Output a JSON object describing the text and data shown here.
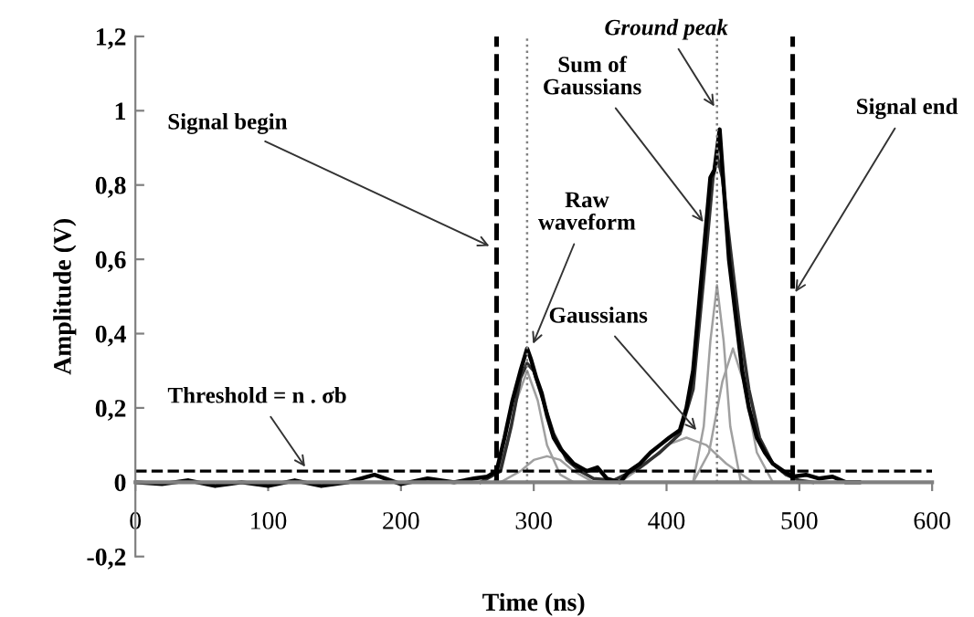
{
  "chart_data": {
    "type": "line",
    "xlabel": "Time (ns)",
    "ylabel": "Amplitude (V)",
    "xlim": [
      0,
      600
    ],
    "xticks": [
      0,
      100,
      200,
      300,
      400,
      500,
      600
    ],
    "ylim": [
      -0.2,
      1.2
    ],
    "yticks": [
      {
        "value": -0.2,
        "label": "-0,2"
      },
      {
        "value": 0,
        "label": "0"
      },
      {
        "value": 0.2,
        "label": "0,2"
      },
      {
        "value": 0.4,
        "label": "0,4"
      },
      {
        "value": 0.6,
        "label": "0,6"
      },
      {
        "value": 0.8,
        "label": "0,8"
      },
      {
        "value": 1,
        "label": "1"
      },
      {
        "value": 1.2,
        "label": "1,2"
      }
    ],
    "grid": false,
    "legend": false,
    "marker": "none",
    "line_style": "solid",
    "series": [
      {
        "color": "#a0a0a0",
        "x": [
          270,
          280,
          287,
          295,
          303,
          310,
          320,
          330
        ],
        "values": [
          0,
          0.1,
          0.22,
          0.3,
          0.22,
          0.1,
          0.02,
          0
        ]
      },
      {
        "color": "#a0a0a0",
        "x": [
          275,
          290,
          300,
          310,
          320,
          330,
          345
        ],
        "values": [
          0,
          0.03,
          0.06,
          0.07,
          0.06,
          0.03,
          0
        ]
      },
      {
        "color": "#a0a0a0",
        "x": [
          365,
          385,
          400,
          415,
          430,
          445,
          465
        ],
        "values": [
          0,
          0.05,
          0.1,
          0.12,
          0.1,
          0.05,
          0
        ]
      },
      {
        "color": "#a0a0a0",
        "x": [
          420,
          428,
          433,
          438,
          443,
          448,
          456
        ],
        "values": [
          0,
          0.15,
          0.38,
          0.53,
          0.38,
          0.15,
          0
        ]
      },
      {
        "color": "#a0a0a0",
        "x": [
          420,
          432,
          442,
          450,
          458,
          468,
          480
        ],
        "values": [
          0,
          0.08,
          0.27,
          0.36,
          0.27,
          0.08,
          0
        ]
      },
      {
        "color": "#303030",
        "x": [
          260,
          275,
          283,
          290,
          295,
          300,
          307,
          315,
          325,
          335,
          345,
          360,
          380,
          395,
          410,
          420,
          428,
          435,
          438,
          442,
          448,
          455,
          462,
          470,
          480,
          490,
          500,
          510
        ],
        "values": [
          0,
          0.03,
          0.15,
          0.28,
          0.32,
          0.3,
          0.22,
          0.13,
          0.06,
          0.03,
          0.01,
          0.005,
          0.04,
          0.08,
          0.13,
          0.25,
          0.55,
          0.82,
          0.88,
          0.82,
          0.63,
          0.42,
          0.25,
          0.12,
          0.05,
          0.02,
          0.005,
          0
        ]
      },
      {
        "color": "#000000",
        "x": [
          0,
          20,
          40,
          60,
          80,
          100,
          120,
          140,
          160,
          180,
          200,
          220,
          240,
          255,
          265,
          272,
          278,
          284,
          290,
          295,
          298,
          302,
          306,
          310,
          315,
          320,
          325,
          330,
          340,
          348,
          355,
          365,
          372,
          380,
          388,
          395,
          402,
          410,
          415,
          420,
          425,
          430,
          433,
          436,
          440,
          443,
          447,
          452,
          457,
          462,
          468,
          474,
          480,
          488,
          495,
          505,
          515,
          525,
          535,
          545
        ],
        "values": [
          0,
          -0.005,
          0.005,
          -0.01,
          0,
          -0.01,
          0.005,
          -0.01,
          0,
          0.02,
          -0.005,
          0.01,
          0,
          0.01,
          0.015,
          0.03,
          0.12,
          0.22,
          0.3,
          0.36,
          0.33,
          0.28,
          0.24,
          0.18,
          0.12,
          0.09,
          0.07,
          0.05,
          0.03,
          0.04,
          0.01,
          0,
          0.03,
          0.05,
          0.08,
          0.1,
          0.12,
          0.14,
          0.2,
          0.3,
          0.5,
          0.7,
          0.82,
          0.84,
          0.95,
          0.8,
          0.6,
          0.45,
          0.3,
          0.2,
          0.12,
          0.08,
          0.05,
          0.03,
          0.015,
          0.02,
          0.01,
          0.015,
          0,
          0
        ]
      }
    ],
    "ref_lines": [
      {
        "axis": "x",
        "value": 272,
        "color": "#000000",
        "line_style": "dashed"
      },
      {
        "axis": "x",
        "value": 495,
        "color": "#000000",
        "line_style": "dashed"
      },
      {
        "axis": "x",
        "value": 295,
        "color": "#808080",
        "line_style": "dotted"
      },
      {
        "axis": "x",
        "value": 438,
        "color": "#808080",
        "line_style": "dotted"
      },
      {
        "axis": "y",
        "value": 0.03,
        "color": "#000000",
        "line_style": "dashed"
      }
    ],
    "annotations": [
      {
        "text": "Ground peak",
        "x": 438,
        "y": 1.0
      },
      {
        "text": "Sum of\nGaussians",
        "x": 430,
        "y": 0.69
      },
      {
        "text": "Signal end",
        "x": 495,
        "y": 0.5
      },
      {
        "text": "Signal begin",
        "x": 270,
        "y": 0.63
      },
      {
        "text": "Raw\nwaveform",
        "x": 298,
        "y": 0.36
      },
      {
        "text": "Gaussians",
        "x": 425,
        "y": 0.13
      },
      {
        "text": "Threshold = n . σb",
        "x": 130,
        "y": 0.03
      }
    ]
  }
}
